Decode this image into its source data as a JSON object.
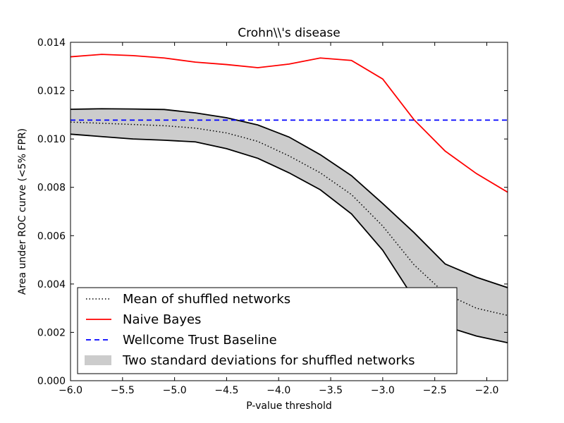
{
  "chart_data": {
    "type": "line",
    "title": "Crohn\\\\'s disease",
    "xlabel": "P-value threshold",
    "ylabel": "Area under ROC curve (<5% FPR)",
    "xlim": [
      -6.0,
      -1.8
    ],
    "ylim": [
      0.0,
      0.014
    ],
    "xticks": [
      -6.0,
      -5.5,
      -5.0,
      -4.5,
      -4.0,
      -3.5,
      -3.0,
      -2.5,
      -2.0
    ],
    "xtick_labels": [
      "−6.0",
      "−5.5",
      "−5.0",
      "−4.5",
      "−4.0",
      "−3.5",
      "−3.0",
      "−2.5",
      "−2.0"
    ],
    "yticks": [
      0.0,
      0.002,
      0.004,
      0.006,
      0.008,
      0.01,
      0.012,
      0.014
    ],
    "ytick_labels": [
      "0.000",
      "0.002",
      "0.004",
      "0.006",
      "0.008",
      "0.010",
      "0.012",
      "0.014"
    ],
    "grid": false,
    "legend_position": "lower-left",
    "x": [
      -6.0,
      -5.7,
      -5.4,
      -5.1,
      -4.8,
      -4.5,
      -4.2,
      -3.9,
      -3.6,
      -3.3,
      -3.0,
      -2.7,
      -2.4,
      -2.1,
      -1.8
    ],
    "series": [
      {
        "name": "Mean of shuffled networks",
        "style": "dotted",
        "color": "#000000",
        "values": [
          0.0107,
          0.01065,
          0.0106,
          0.01055,
          0.01045,
          0.01025,
          0.0099,
          0.0093,
          0.0086,
          0.0077,
          0.0064,
          0.0048,
          0.0036,
          0.003,
          0.0027
        ]
      },
      {
        "name": "Naive Bayes",
        "style": "solid",
        "color": "#ff0000",
        "values": [
          0.0134,
          0.0135,
          0.01345,
          0.01335,
          0.01318,
          0.01308,
          0.01295,
          0.0131,
          0.01335,
          0.01325,
          0.01248,
          0.0108,
          0.0095,
          0.00857,
          0.0078
        ]
      },
      {
        "name": "Wellcome Trust Baseline",
        "style": "dashed",
        "color": "#0000ff",
        "values": [
          0.01078,
          0.01078,
          0.01078,
          0.01078,
          0.01078,
          0.01078,
          0.01078,
          0.01078,
          0.01078,
          0.01078,
          0.01078,
          0.01078,
          0.01078,
          0.01078,
          0.01078
        ]
      }
    ],
    "band": {
      "name": "Two standard deviations for shuffled networks",
      "color": "#cccccc",
      "edge_color": "#000000",
      "upper": [
        0.01123,
        0.01125,
        0.01124,
        0.01122,
        0.01108,
        0.01088,
        0.01058,
        0.01008,
        0.00935,
        0.00848,
        0.00733,
        0.00613,
        0.00483,
        0.00428,
        0.00385
      ],
      "lower": [
        0.0102,
        0.0101,
        0.01,
        0.00995,
        0.00988,
        0.0096,
        0.0092,
        0.0086,
        0.0079,
        0.0069,
        0.0054,
        0.0034,
        0.00225,
        0.00185,
        0.00157
      ]
    }
  }
}
